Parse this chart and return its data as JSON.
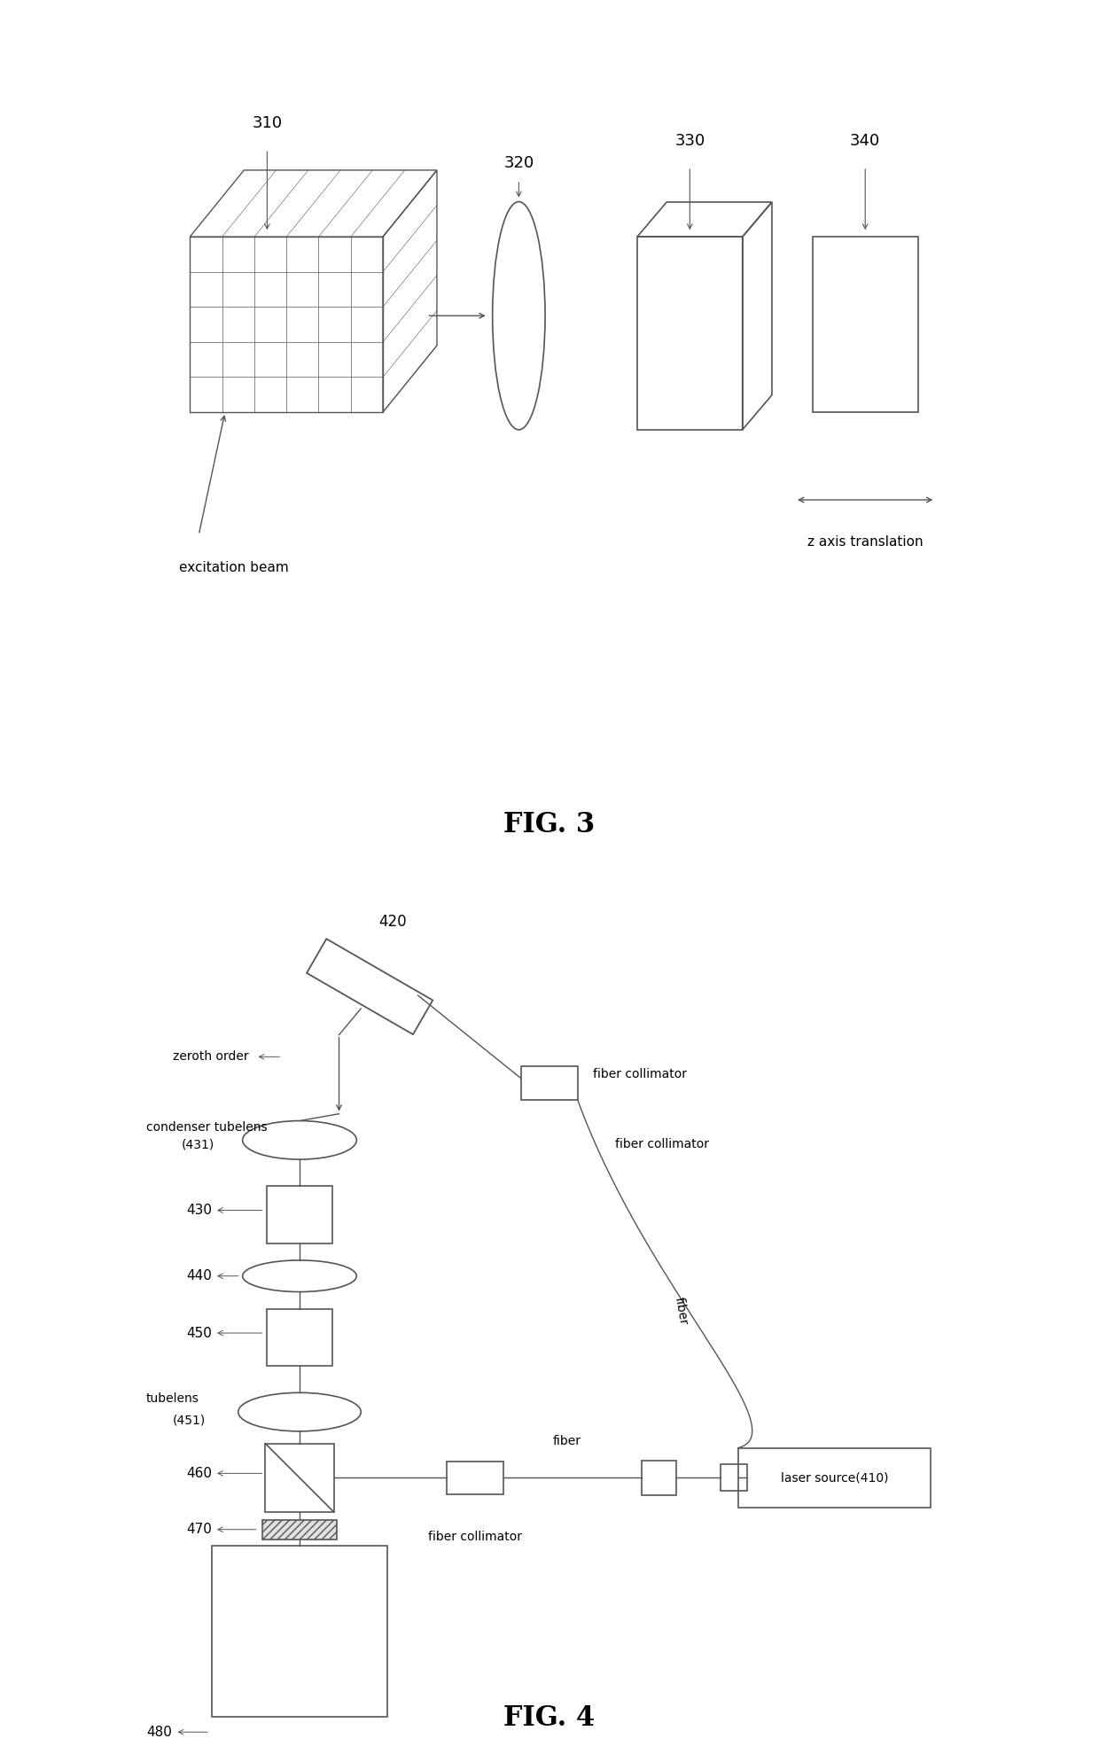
{
  "bg_color": "#ffffff",
  "line_color": "#555555",
  "fig3_title": "FIG. 3",
  "fig4_title": "FIG. 4",
  "excitation_beam": "excitation beam",
  "z_axis": "z axis translation",
  "labels_3": [
    "310",
    "320",
    "330",
    "340"
  ],
  "labels_4": {
    "420": "420",
    "430": "430",
    "440": "440",
    "450": "450",
    "460": "460",
    "470": "470",
    "480": "480",
    "431": "(431)",
    "451": "(451)",
    "410": "laser source(410)",
    "zeroth_order": "zeroth order",
    "condenser": "condenser tubelens",
    "tubelens": "tubelens",
    "fiber_col1": "fiber collimator",
    "fiber_col2": "fiber collimator",
    "fiber_col3": "fiber collimator",
    "fiber_label": "fiber",
    "fiber_label2": "fiber"
  }
}
